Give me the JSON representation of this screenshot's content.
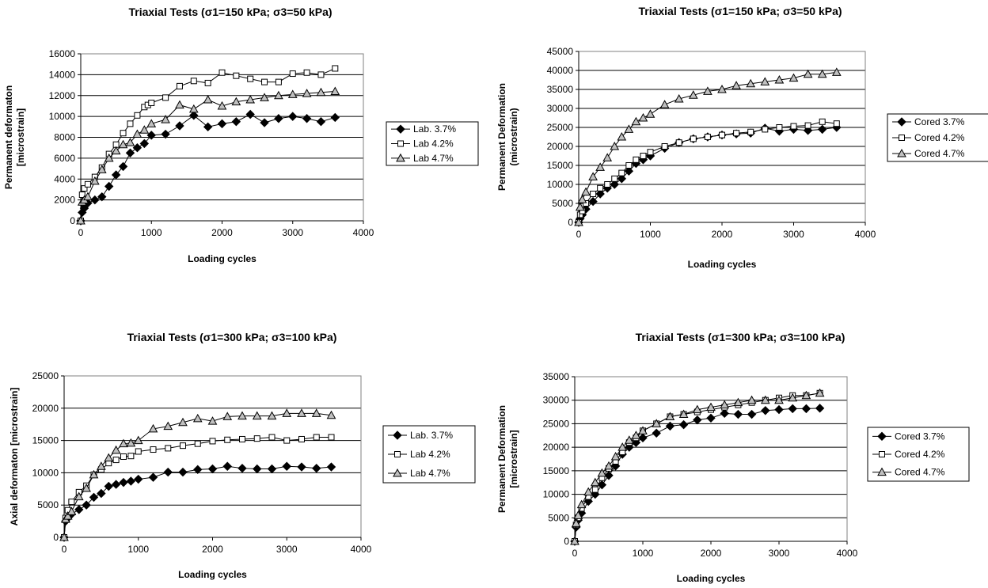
{
  "chart_data": [
    {
      "type": "line",
      "title": "Triaxial Tests (σ1=150 kPa; σ3=50 kPa)",
      "xlabel": "Loading cycles",
      "ylabel": [
        "Permanent deformaton",
        "[microstrain]"
      ],
      "xlim": [
        0,
        4000
      ],
      "ylim": [
        0,
        16000
      ],
      "xticks": [
        0,
        1000,
        2000,
        3000,
        4000
      ],
      "yticks": [
        0,
        2000,
        4000,
        6000,
        8000,
        10000,
        12000,
        14000,
        16000
      ],
      "grid": true,
      "legend": "right",
      "series": [
        {
          "name": "Lab. 3.7%",
          "marker": "diamond",
          "x": [
            0,
            20,
            50,
            100,
            200,
            300,
            400,
            500,
            600,
            700,
            800,
            900,
            1000,
            1200,
            1400,
            1600,
            1800,
            2000,
            2200,
            2400,
            2600,
            2800,
            3000,
            3200,
            3400,
            3600
          ],
          "y": [
            0,
            800,
            1200,
            1700,
            2000,
            2300,
            3300,
            4400,
            5200,
            6500,
            7000,
            7400,
            8200,
            8300,
            9100,
            10100,
            9000,
            9300,
            9500,
            10200,
            9400,
            9800,
            10000,
            9800,
            9500,
            9900
          ]
        },
        {
          "name": "Lab 4.2%",
          "marker": "square",
          "x": [
            0,
            20,
            50,
            100,
            200,
            300,
            400,
            500,
            600,
            700,
            800,
            900,
            950,
            1000,
            1200,
            1400,
            1600,
            1800,
            2000,
            2200,
            2400,
            2600,
            2800,
            3000,
            3200,
            3400,
            3600
          ],
          "y": [
            0,
            2500,
            3100,
            3500,
            4200,
            5100,
            6400,
            7300,
            8400,
            9300,
            10100,
            10900,
            11100,
            11300,
            11800,
            12900,
            13400,
            13200,
            14200,
            13900,
            13600,
            13300,
            13300,
            14100,
            14200,
            14000,
            14600
          ]
        },
        {
          "name": "Lab 4.7%",
          "marker": "triangle",
          "x": [
            0,
            20,
            50,
            100,
            200,
            300,
            400,
            500,
            600,
            700,
            800,
            900,
            1000,
            1200,
            1400,
            1600,
            1800,
            2000,
            2200,
            2400,
            2600,
            2800,
            3000,
            3200,
            3400,
            3600
          ],
          "y": [
            0,
            1800,
            2000,
            2300,
            3800,
            4900,
            6000,
            6700,
            7300,
            7500,
            8300,
            8700,
            9300,
            9700,
            11100,
            10700,
            11600,
            11000,
            11400,
            11600,
            11800,
            12000,
            12100,
            12200,
            12300,
            12400
          ]
        }
      ]
    },
    {
      "type": "line",
      "title": "Triaxial Tests (σ1=150 kPa; σ3=50 kPa)",
      "xlabel": "Loading cycles",
      "ylabel": [
        "Permanent Deformation",
        "(microstrain)"
      ],
      "xlim": [
        0,
        4000
      ],
      "ylim": [
        0,
        45000
      ],
      "xticks": [
        0,
        1000,
        2000,
        3000,
        4000
      ],
      "yticks": [
        0,
        5000,
        10000,
        15000,
        20000,
        25000,
        30000,
        35000,
        40000,
        45000
      ],
      "grid": true,
      "legend": "right",
      "series": [
        {
          "name": "Cored 3.7%",
          "marker": "diamond",
          "x": [
            0,
            20,
            50,
            100,
            200,
            300,
            400,
            500,
            600,
            700,
            800,
            900,
            1000,
            1200,
            1400,
            1600,
            1800,
            2000,
            2200,
            2400,
            2600,
            2800,
            3000,
            3200,
            3400,
            3600
          ],
          "y": [
            0,
            1000,
            2000,
            3500,
            5500,
            7500,
            9000,
            10000,
            11500,
            13500,
            15500,
            16500,
            17500,
            19500,
            21000,
            22000,
            22500,
            23000,
            23300,
            23500,
            24800,
            24000,
            24500,
            24200,
            24500,
            25000
          ]
        },
        {
          "name": "Cored 4.2%",
          "marker": "square",
          "x": [
            0,
            20,
            50,
            100,
            200,
            300,
            400,
            500,
            600,
            700,
            800,
            900,
            1000,
            1200,
            1400,
            1600,
            1800,
            2000,
            2200,
            2400,
            2600,
            2800,
            3000,
            3200,
            3400,
            3600
          ],
          "y": [
            0,
            2000,
            3000,
            5000,
            7500,
            9000,
            10000,
            11500,
            13000,
            15000,
            16500,
            17500,
            18500,
            20000,
            21000,
            22000,
            22500,
            23000,
            23500,
            23800,
            24500,
            25000,
            25300,
            25500,
            26500,
            26000
          ]
        },
        {
          "name": "Cored 4.7%",
          "marker": "triangle",
          "x": [
            0,
            20,
            50,
            100,
            200,
            300,
            400,
            500,
            600,
            700,
            800,
            900,
            1000,
            1200,
            1400,
            1600,
            1800,
            2000,
            2200,
            2400,
            2600,
            2800,
            3000,
            3200,
            3400,
            3600
          ],
          "y": [
            0,
            4000,
            6000,
            8000,
            12000,
            14500,
            17000,
            20000,
            22500,
            24500,
            26500,
            27500,
            28500,
            31000,
            32500,
            33500,
            34500,
            35000,
            36000,
            36500,
            37000,
            37500,
            38000,
            39000,
            39000,
            39500
          ]
        }
      ]
    },
    {
      "type": "line",
      "title": "Triaxial Tests (σ1=300 kPa; σ3=100 kPa)",
      "xlabel": "Loading cycles",
      "ylabel": [
        "Axial deformaton [microstrain]"
      ],
      "xlim": [
        0,
        4000
      ],
      "ylim": [
        0,
        25000
      ],
      "xticks": [
        0,
        1000,
        2000,
        3000,
        4000
      ],
      "yticks": [
        0,
        5000,
        10000,
        15000,
        20000,
        25000
      ],
      "grid": true,
      "legend": "right",
      "series": [
        {
          "name": "Lab. 3.7%",
          "marker": "diamond",
          "x": [
            0,
            20,
            50,
            100,
            200,
            300,
            400,
            500,
            600,
            700,
            800,
            900,
            1000,
            1200,
            1400,
            1600,
            1800,
            2000,
            2200,
            2400,
            2600,
            2800,
            3000,
            3200,
            3400,
            3600
          ],
          "y": [
            0,
            2500,
            3000,
            3600,
            4300,
            5000,
            6200,
            6800,
            7900,
            8200,
            8500,
            8700,
            9000,
            9300,
            10100,
            10100,
            10500,
            10600,
            11000,
            10700,
            10600,
            10600,
            11000,
            10900,
            10700,
            10900
          ]
        },
        {
          "name": "Lab 4.2%",
          "marker": "square",
          "x": [
            0,
            20,
            50,
            100,
            200,
            300,
            400,
            500,
            600,
            700,
            800,
            900,
            1000,
            1200,
            1400,
            1600,
            1800,
            2000,
            2200,
            2400,
            2600,
            2800,
            3000,
            3200,
            3400,
            3600
          ],
          "y": [
            0,
            3000,
            4200,
            5500,
            7000,
            8000,
            9700,
            10500,
            11500,
            12000,
            12500,
            12600,
            13300,
            13600,
            13800,
            14200,
            14500,
            14900,
            15100,
            15200,
            15300,
            15500,
            15000,
            15200,
            15500,
            15500
          ]
        },
        {
          "name": "Lab 4.7%",
          "marker": "triangle",
          "x": [
            0,
            20,
            50,
            100,
            200,
            300,
            400,
            500,
            600,
            700,
            800,
            900,
            1000,
            1200,
            1400,
            1600,
            1800,
            2000,
            2200,
            2400,
            2600,
            2800,
            3000,
            3200,
            3400,
            3600
          ],
          "y": [
            0,
            2800,
            3300,
            4000,
            6300,
            7600,
            9700,
            11000,
            12300,
            13500,
            14500,
            14600,
            15000,
            16800,
            17200,
            17800,
            18400,
            18000,
            18700,
            18800,
            18800,
            18800,
            19200,
            19200,
            19200,
            18900
          ]
        }
      ]
    },
    {
      "type": "line",
      "title": "Triaxial Tests (σ1=300 kPa; σ3=100 kPa)",
      "xlabel": "Loading cycles",
      "ylabel": [
        "Permanent Deformation",
        "[microstrain]"
      ],
      "xlim": [
        0,
        4000
      ],
      "ylim": [
        0,
        35000
      ],
      "xticks": [
        0,
        1000,
        2000,
        3000,
        4000
      ],
      "yticks": [
        0,
        5000,
        10000,
        15000,
        20000,
        25000,
        30000,
        35000
      ],
      "grid": true,
      "legend": "right",
      "series": [
        {
          "name": "Cored 3.7%",
          "marker": "diamond",
          "x": [
            0,
            20,
            50,
            100,
            200,
            300,
            400,
            500,
            600,
            700,
            800,
            900,
            1000,
            1200,
            1400,
            1600,
            1800,
            2000,
            2200,
            2400,
            2600,
            2800,
            3000,
            3200,
            3400,
            3600
          ],
          "y": [
            0,
            3000,
            4500,
            6000,
            8500,
            10000,
            12000,
            14000,
            16000,
            18500,
            20000,
            21000,
            22000,
            23000,
            24500,
            24800,
            25800,
            26200,
            27200,
            27000,
            27000,
            27800,
            28000,
            28200,
            28200,
            28300
          ]
        },
        {
          "name": "Cored 4.2%",
          "marker": "square",
          "x": [
            0,
            20,
            50,
            100,
            200,
            300,
            400,
            500,
            600,
            700,
            800,
            900,
            1000,
            1200,
            1400,
            1600,
            1800,
            2000,
            2200,
            2400,
            2600,
            2800,
            3000,
            3200,
            3400,
            3600
          ],
          "y": [
            0,
            3500,
            5000,
            7000,
            9500,
            11000,
            13500,
            15500,
            17000,
            19000,
            21000,
            22000,
            23500,
            25000,
            26500,
            27000,
            27500,
            28000,
            28500,
            29000,
            29500,
            30000,
            30500,
            31000,
            31000,
            31500
          ]
        },
        {
          "name": "Cored 4.7%",
          "marker": "triangle",
          "x": [
            0,
            20,
            50,
            100,
            200,
            300,
            400,
            500,
            600,
            700,
            800,
            900,
            1000,
            1200,
            1400,
            1600,
            1800,
            2000,
            2200,
            2400,
            2600,
            2800,
            3000,
            3200,
            3400,
            3600
          ],
          "y": [
            0,
            3800,
            5500,
            7800,
            10500,
            12500,
            14500,
            16000,
            18000,
            20000,
            21500,
            22500,
            23500,
            25000,
            26500,
            27000,
            28000,
            28500,
            29000,
            29500,
            30000,
            30000,
            30000,
            30500,
            31000,
            31500
          ]
        }
      ]
    }
  ]
}
